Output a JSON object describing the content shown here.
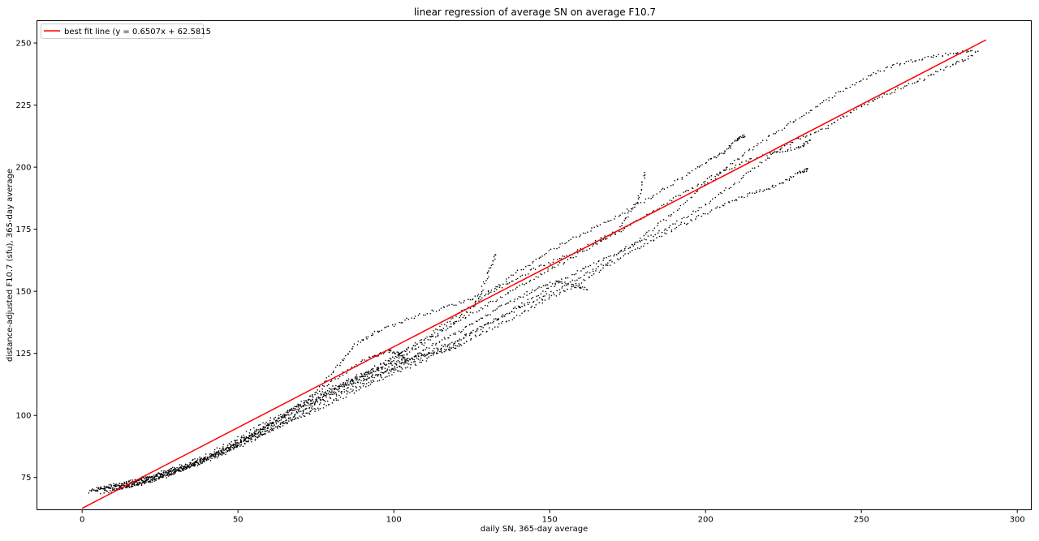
{
  "chart_data": {
    "type": "scatter",
    "title": "linear regression of average SN on average F10.7",
    "xlabel": "daily SN, 365-day average",
    "ylabel": "distance-adjusted F10.7 (sfu), 365-day average",
    "xlim": [
      -14.5,
      304.5
    ],
    "ylim": [
      62,
      259
    ],
    "x_ticks": [
      0,
      50,
      100,
      150,
      200,
      250,
      300
    ],
    "y_ticks": [
      75,
      100,
      125,
      150,
      175,
      200,
      225,
      250
    ],
    "grid": false,
    "legend_position": "upper-left",
    "colors": {
      "points": "#000000",
      "fit_line": "#ff0000"
    },
    "fit_line": {
      "label": "best fit line (y = 0.6507x + 62.5815",
      "slope": 0.6507,
      "intercept": 62.5815,
      "x_range": [
        0,
        290
      ]
    },
    "point_paths": [
      [
        [
          2,
          69
        ],
        [
          8,
          71
        ],
        [
          15,
          73
        ],
        [
          22,
          75
        ],
        [
          30,
          78
        ],
        [
          40,
          82
        ],
        [
          50,
          88
        ],
        [
          60,
          94
        ],
        [
          70,
          101
        ],
        [
          80,
          108
        ],
        [
          90,
          114
        ],
        [
          100,
          119
        ],
        [
          110,
          125
        ],
        [
          120,
          130
        ],
        [
          130,
          137
        ],
        [
          140,
          143
        ],
        [
          150,
          149
        ],
        [
          160,
          156
        ],
        [
          170,
          163
        ],
        [
          180,
          172
        ],
        [
          190,
          182
        ],
        [
          200,
          193
        ],
        [
          210,
          203
        ],
        [
          220,
          212
        ],
        [
          230,
          220
        ],
        [
          240,
          228
        ],
        [
          250,
          235
        ],
        [
          260,
          241
        ],
        [
          270,
          244
        ],
        [
          280,
          246
        ],
        [
          288,
          247
        ]
      ],
      [
        [
          3,
          70
        ],
        [
          10,
          72
        ],
        [
          18,
          74
        ],
        [
          26,
          77
        ],
        [
          34,
          80
        ],
        [
          44,
          85
        ],
        [
          54,
          91
        ],
        [
          64,
          99
        ],
        [
          74,
          108
        ],
        [
          82,
          120
        ],
        [
          88,
          129
        ],
        [
          95,
          134
        ],
        [
          105,
          139
        ],
        [
          115,
          143
        ],
        [
          125,
          147
        ],
        [
          135,
          152
        ],
        [
          145,
          159
        ],
        [
          155,
          164
        ],
        [
          165,
          170
        ],
        [
          172,
          175
        ],
        [
          178,
          186
        ],
        [
          181,
          199
        ]
      ],
      [
        [
          4,
          70
        ],
        [
          12,
          72
        ],
        [
          20,
          75
        ],
        [
          30,
          79
        ],
        [
          40,
          84
        ],
        [
          50,
          91
        ],
        [
          60,
          98
        ],
        [
          70,
          104
        ],
        [
          80,
          111
        ],
        [
          88,
          115
        ],
        [
          94,
          118
        ],
        [
          100,
          121
        ],
        [
          108,
          124
        ],
        [
          116,
          126
        ],
        [
          122,
          128
        ]
      ],
      [
        [
          5,
          70
        ],
        [
          14,
          72
        ],
        [
          22,
          75
        ],
        [
          32,
          79
        ],
        [
          42,
          84
        ],
        [
          52,
          90
        ],
        [
          62,
          96
        ],
        [
          72,
          103
        ],
        [
          80,
          109
        ],
        [
          88,
          114
        ],
        [
          96,
          119
        ],
        [
          106,
          126
        ],
        [
          116,
          134
        ],
        [
          126,
          144
        ],
        [
          130,
          156
        ],
        [
          133,
          166
        ]
      ],
      [
        [
          6,
          69
        ],
        [
          16,
          72
        ],
        [
          26,
          76
        ],
        [
          36,
          80
        ],
        [
          46,
          86
        ],
        [
          56,
          93
        ],
        [
          66,
          100
        ],
        [
          76,
          107
        ],
        [
          86,
          113
        ],
        [
          96,
          117
        ],
        [
          104,
          122
        ],
        [
          112,
          128
        ],
        [
          120,
          133
        ],
        [
          128,
          139
        ],
        [
          136,
          145
        ],
        [
          144,
          150
        ],
        [
          152,
          154
        ],
        [
          158,
          152
        ],
        [
          162,
          151
        ]
      ],
      [
        [
          8,
          69
        ],
        [
          18,
          72
        ],
        [
          28,
          76
        ],
        [
          38,
          81
        ],
        [
          48,
          86
        ],
        [
          58,
          92
        ],
        [
          68,
          98
        ],
        [
          78,
          104
        ],
        [
          88,
          110
        ],
        [
          98,
          116
        ],
        [
          108,
          121
        ],
        [
          118,
          127
        ],
        [
          128,
          133
        ],
        [
          138,
          139
        ],
        [
          148,
          146
        ],
        [
          158,
          152
        ],
        [
          168,
          160
        ],
        [
          178,
          167
        ],
        [
          188,
          174
        ],
        [
          198,
          180
        ],
        [
          208,
          186
        ],
        [
          216,
          190
        ],
        [
          224,
          193
        ],
        [
          230,
          198
        ],
        [
          233,
          199
        ]
      ],
      [
        [
          10,
          70
        ],
        [
          20,
          73
        ],
        [
          30,
          77
        ],
        [
          40,
          83
        ],
        [
          50,
          89
        ],
        [
          60,
          96
        ],
        [
          70,
          103
        ],
        [
          80,
          110
        ],
        [
          90,
          116
        ],
        [
          100,
          123
        ],
        [
          110,
          131
        ],
        [
          120,
          140
        ],
        [
          130,
          149
        ],
        [
          140,
          158
        ],
        [
          150,
          166
        ],
        [
          160,
          173
        ],
        [
          170,
          179
        ],
        [
          180,
          186
        ],
        [
          190,
          194
        ],
        [
          200,
          202
        ],
        [
          206,
          206
        ],
        [
          210,
          211
        ],
        [
          213,
          213
        ]
      ],
      [
        [
          12,
          71
        ],
        [
          22,
          74
        ],
        [
          32,
          78
        ],
        [
          42,
          84
        ],
        [
          52,
          91
        ],
        [
          62,
          98
        ],
        [
          72,
          105
        ],
        [
          82,
          112
        ],
        [
          92,
          118
        ],
        [
          102,
          125
        ],
        [
          112,
          132
        ],
        [
          122,
          139
        ],
        [
          132,
          146
        ],
        [
          142,
          153
        ],
        [
          152,
          160
        ],
        [
          162,
          167
        ],
        [
          172,
          174
        ],
        [
          182,
          181
        ],
        [
          192,
          189
        ],
        [
          202,
          196
        ],
        [
          212,
          202
        ],
        [
          222,
          206
        ],
        [
          230,
          208
        ],
        [
          234,
          211
        ]
      ],
      [
        [
          14,
          71
        ],
        [
          24,
          74
        ],
        [
          34,
          79
        ],
        [
          44,
          85
        ],
        [
          54,
          92
        ],
        [
          64,
          100
        ],
        [
          74,
          108
        ],
        [
          84,
          117
        ],
        [
          92,
          123
        ],
        [
          98,
          126
        ],
        [
          102,
          125
        ],
        [
          104,
          122
        ]
      ],
      [
        [
          9,
          70
        ],
        [
          19,
          73
        ],
        [
          29,
          77
        ],
        [
          39,
          82
        ],
        [
          49,
          87
        ],
        [
          59,
          93
        ],
        [
          69,
          99
        ],
        [
          79,
          106
        ],
        [
          89,
          112
        ],
        [
          99,
          118
        ],
        [
          109,
          123
        ],
        [
          119,
          129
        ],
        [
          129,
          136
        ],
        [
          139,
          143
        ],
        [
          149,
          151
        ],
        [
          159,
          158
        ],
        [
          169,
          164
        ],
        [
          179,
          170
        ],
        [
          189,
          176
        ],
        [
          199,
          184
        ],
        [
          209,
          193
        ],
        [
          219,
          203
        ],
        [
          229,
          211
        ],
        [
          239,
          216
        ],
        [
          249,
          224
        ],
        [
          259,
          230
        ],
        [
          269,
          235
        ],
        [
          279,
          241
        ],
        [
          286,
          245
        ]
      ]
    ]
  }
}
